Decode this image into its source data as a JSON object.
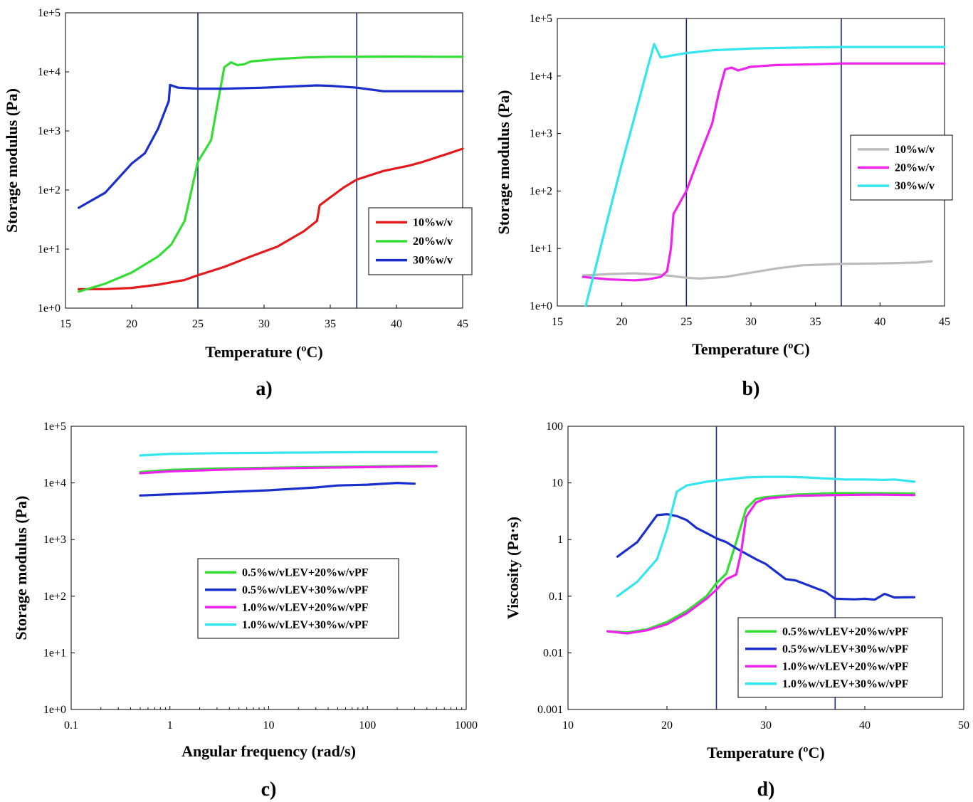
{
  "chart_data": [
    {
      "type": "line",
      "panel_label": "a)",
      "xlabel": "Temperature (ºC)",
      "ylabel": "Storage modulus (Pa)",
      "xlim": [
        15,
        45
      ],
      "ylim": [
        1,
        100000
      ],
      "yscale": "log",
      "xticks": [
        15,
        20,
        25,
        30,
        35,
        40,
        45
      ],
      "xtick_labels": [
        "15",
        "20",
        "25",
        "30",
        "35",
        "40",
        "45"
      ],
      "yticks": [
        1,
        10,
        100,
        1000,
        10000,
        100000
      ],
      "ytick_labels": [
        "1e+0",
        "1e+1",
        "1e+2",
        "1e+3",
        "1e+4",
        "1e+5"
      ],
      "vlines": [
        25,
        37
      ],
      "vline_color": "#1a237e",
      "legend_position": "right",
      "series": [
        {
          "name": "10%w/v",
          "color": "#e31a1c",
          "points": [
            [
              16,
              2.1
            ],
            [
              18,
              2.1
            ],
            [
              20,
              2.2
            ],
            [
              22,
              2.5
            ],
            [
              24,
              3.0
            ],
            [
              25,
              3.6
            ],
            [
              27,
              5.0
            ],
            [
              29,
              7.5
            ],
            [
              31,
              11
            ],
            [
              33,
              20
            ],
            [
              34,
              30
            ],
            [
              34.2,
              55
            ],
            [
              35,
              75
            ],
            [
              36,
              110
            ],
            [
              37,
              150
            ],
            [
              39,
              210
            ],
            [
              41,
              260
            ],
            [
              42,
              300
            ],
            [
              44,
              420
            ],
            [
              45,
              500
            ]
          ]
        },
        {
          "name": "20%w/v",
          "color": "#33dd33",
          "points": [
            [
              16,
              1.9
            ],
            [
              18,
              2.6
            ],
            [
              20,
              4.0
            ],
            [
              22,
              7.5
            ],
            [
              23,
              12
            ],
            [
              24,
              30
            ],
            [
              25,
              300
            ],
            [
              26,
              700
            ],
            [
              26.5,
              3000
            ],
            [
              27,
              12000
            ],
            [
              27.5,
              14500
            ],
            [
              28,
              13000
            ],
            [
              28.5,
              13500
            ],
            [
              29,
              15000
            ],
            [
              31,
              16500
            ],
            [
              33,
              17500
            ],
            [
              35,
              18000
            ],
            [
              37,
              18000
            ],
            [
              40,
              18200
            ],
            [
              43,
              18000
            ],
            [
              45,
              18000
            ]
          ]
        },
        {
          "name": "30%w/v",
          "color": "#1a2ecc",
          "points": [
            [
              16,
              50
            ],
            [
              18,
              90
            ],
            [
              20,
              280
            ],
            [
              21,
              420
            ],
            [
              22,
              1100
            ],
            [
              22.8,
              3200
            ],
            [
              22.9,
              6000
            ],
            [
              23.5,
              5400
            ],
            [
              25,
              5200
            ],
            [
              27,
              5200
            ],
            [
              30,
              5400
            ],
            [
              34,
              5900
            ],
            [
              35,
              5800
            ],
            [
              37,
              5400
            ],
            [
              39,
              4700
            ],
            [
              42,
              4700
            ],
            [
              45,
              4700
            ]
          ]
        }
      ]
    },
    {
      "type": "line",
      "panel_label": "b)",
      "xlabel": "Temperature (ºC)",
      "ylabel": "Storage modulus (Pa)",
      "xlim": [
        15,
        45
      ],
      "ylim": [
        1,
        100000
      ],
      "yscale": "log",
      "xticks": [
        15,
        20,
        25,
        30,
        35,
        40,
        45
      ],
      "xtick_labels": [
        "15",
        "20",
        "25",
        "30",
        "35",
        "40",
        "45"
      ],
      "yticks": [
        1,
        10,
        100,
        1000,
        10000,
        100000
      ],
      "ytick_labels": [
        "1e+0",
        "1e+1",
        "1e+2",
        "1e+3",
        "1e+4",
        "1e+5"
      ],
      "vlines": [
        25,
        37
      ],
      "vline_color": "#1a237e",
      "legend_position": "right",
      "series": [
        {
          "name": "10%w/v",
          "color": "#bbbbbb",
          "points": [
            [
              17,
              3.4
            ],
            [
              19,
              3.6
            ],
            [
              21,
              3.7
            ],
            [
              23,
              3.5
            ],
            [
              25,
              3.1
            ],
            [
              26,
              3.0
            ],
            [
              28,
              3.2
            ],
            [
              30,
              3.8
            ],
            [
              32,
              4.5
            ],
            [
              34,
              5.1
            ],
            [
              37,
              5.4
            ],
            [
              40,
              5.5
            ],
            [
              43,
              5.7
            ],
            [
              44,
              6.0
            ]
          ]
        },
        {
          "name": "20%w/v",
          "color": "#ee22ee",
          "points": [
            [
              17,
              3.2
            ],
            [
              19,
              2.9
            ],
            [
              21,
              2.8
            ],
            [
              22,
              2.9
            ],
            [
              23,
              3.2
            ],
            [
              23.5,
              4
            ],
            [
              23.8,
              10
            ],
            [
              24,
              40
            ],
            [
              25,
              100
            ],
            [
              26,
              400
            ],
            [
              27,
              1500
            ],
            [
              27.5,
              5000
            ],
            [
              28,
              13000
            ],
            [
              28.5,
              14000
            ],
            [
              29,
              12500
            ],
            [
              30,
              14500
            ],
            [
              32,
              15500
            ],
            [
              35,
              16000
            ],
            [
              37,
              16500
            ],
            [
              40,
              16500
            ],
            [
              45,
              16500
            ]
          ]
        },
        {
          "name": "30%w/v",
          "color": "#33e6ee",
          "points": [
            [
              17.2,
              1.0
            ],
            [
              18,
              5
            ],
            [
              19,
              40
            ],
            [
              20,
              300
            ],
            [
              21,
              2000
            ],
            [
              22,
              14000
            ],
            [
              22.5,
              36000
            ],
            [
              23,
              21000
            ],
            [
              24,
              23000
            ],
            [
              25,
              25000
            ],
            [
              27,
              28000
            ],
            [
              30,
              30000
            ],
            [
              33,
              31000
            ],
            [
              37,
              32000
            ],
            [
              40,
              32000
            ],
            [
              45,
              32000
            ]
          ]
        }
      ]
    },
    {
      "type": "line",
      "panel_label": "c)",
      "xlabel": "Angular frequency (rad/s)",
      "ylabel": "Storage modulus (Pa)",
      "xlim": [
        0.1,
        1000
      ],
      "xscale": "log",
      "ylim": [
        1,
        100000
      ],
      "yscale": "log",
      "xticks": [
        0.1,
        1,
        10,
        100,
        1000
      ],
      "xtick_labels": [
        "0.1",
        "1",
        "10",
        "100",
        "1000"
      ],
      "yticks": [
        1,
        10,
        100,
        1000,
        10000,
        100000
      ],
      "ytick_labels": [
        "1e+0",
        "1e+1",
        "1e+2",
        "1e+3",
        "1e+4",
        "1e+5"
      ],
      "vlines": [],
      "legend_position": "center",
      "series": [
        {
          "name": "0.5%w/vLEV+20%w/vPF",
          "color": "#33dd33",
          "points": [
            [
              0.5,
              15500
            ],
            [
              1,
              17000
            ],
            [
              3,
              18000
            ],
            [
              10,
              18500
            ],
            [
              30,
              19000
            ],
            [
              100,
              19500
            ],
            [
              300,
              20000
            ],
            [
              500,
              20000
            ]
          ]
        },
        {
          "name": "0.5%w/vLEV+30%w/vPF",
          "color": "#1a2ecc",
          "points": [
            [
              0.5,
              6000
            ],
            [
              1,
              6300
            ],
            [
              3,
              6800
            ],
            [
              10,
              7400
            ],
            [
              30,
              8300
            ],
            [
              50,
              9000
            ],
            [
              100,
              9300
            ],
            [
              200,
              10000
            ],
            [
              300,
              9700
            ]
          ]
        },
        {
          "name": "1.0%w/vLEV+20%w/vPF",
          "color": "#ee22ee",
          "points": [
            [
              0.5,
              14800
            ],
            [
              1,
              16000
            ],
            [
              3,
              17000
            ],
            [
              10,
              18000
            ],
            [
              30,
              18500
            ],
            [
              100,
              19000
            ],
            [
              300,
              19500
            ],
            [
              500,
              19800
            ]
          ]
        },
        {
          "name": "1.0%w/vLEV+30%w/vPF",
          "color": "#33e6ee",
          "points": [
            [
              0.5,
              30500
            ],
            [
              1,
              32500
            ],
            [
              3,
              33500
            ],
            [
              10,
              34000
            ],
            [
              30,
              34500
            ],
            [
              100,
              35000
            ],
            [
              300,
              35000
            ],
            [
              500,
              35000
            ]
          ]
        }
      ]
    },
    {
      "type": "line",
      "panel_label": "d)",
      "xlabel": "Temperature (ºC)",
      "ylabel": "Viscosity (Pa·s)",
      "xlim": [
        10,
        50
      ],
      "ylim": [
        0.001,
        100
      ],
      "yscale": "log",
      "xticks": [
        10,
        20,
        30,
        40,
        50
      ],
      "xtick_labels": [
        "10",
        "20",
        "30",
        "40",
        "50"
      ],
      "yticks": [
        0.001,
        0.01,
        0.1,
        1,
        10,
        100
      ],
      "ytick_labels": [
        "0.001",
        "0.01",
        "0.1",
        "1",
        "10",
        "100"
      ],
      "vlines": [
        25,
        37
      ],
      "vline_color": "#1a237e",
      "legend_position": "bottom-right",
      "series": [
        {
          "name": "0.5%w/vLEV+20%w/vPF",
          "color": "#33dd33",
          "points": [
            [
              14,
              0.024
            ],
            [
              16,
              0.023
            ],
            [
              18,
              0.026
            ],
            [
              20,
              0.035
            ],
            [
              22,
              0.055
            ],
            [
              24,
              0.1
            ],
            [
              25,
              0.17
            ],
            [
              26,
              0.25
            ],
            [
              27,
              0.9
            ],
            [
              28,
              3.5
            ],
            [
              29,
              5.2
            ],
            [
              30,
              5.6
            ],
            [
              33,
              6.2
            ],
            [
              37,
              6.6
            ],
            [
              41,
              6.6
            ],
            [
              45,
              6.5
            ]
          ]
        },
        {
          "name": "0.5%w/vLEV+30%w/vPF",
          "color": "#1a2ecc",
          "points": [
            [
              15,
              0.5
            ],
            [
              17,
              0.9
            ],
            [
              19,
              2.7
            ],
            [
              20,
              2.8
            ],
            [
              21,
              2.6
            ],
            [
              22,
              2.2
            ],
            [
              23,
              1.6
            ],
            [
              24,
              1.3
            ],
            [
              25,
              1.05
            ],
            [
              26,
              0.9
            ],
            [
              27,
              0.7
            ],
            [
              29,
              0.45
            ],
            [
              30,
              0.37
            ],
            [
              32,
              0.2
            ],
            [
              33,
              0.19
            ],
            [
              35,
              0.14
            ],
            [
              36,
              0.12
            ],
            [
              37,
              0.09
            ],
            [
              39,
              0.088
            ],
            [
              40,
              0.09
            ],
            [
              41,
              0.087
            ],
            [
              42,
              0.11
            ],
            [
              43,
              0.095
            ],
            [
              45,
              0.096
            ]
          ]
        },
        {
          "name": "1.0%w/vLEV+20%w/vPF",
          "color": "#ee22ee",
          "points": [
            [
              14,
              0.024
            ],
            [
              16,
              0.022
            ],
            [
              18,
              0.025
            ],
            [
              20,
              0.032
            ],
            [
              22,
              0.05
            ],
            [
              24,
              0.09
            ],
            [
              25,
              0.13
            ],
            [
              26,
              0.2
            ],
            [
              27,
              0.24
            ],
            [
              27.5,
              0.6
            ],
            [
              28,
              2.5
            ],
            [
              29,
              4.5
            ],
            [
              30,
              5.3
            ],
            [
              33,
              5.9
            ],
            [
              37,
              6.1
            ],
            [
              41,
              6.2
            ],
            [
              45,
              6.1
            ]
          ]
        },
        {
          "name": "1.0%w/vLEV+30%w/vPF",
          "color": "#33e6ee",
          "points": [
            [
              15,
              0.1
            ],
            [
              17,
              0.18
            ],
            [
              19,
              0.45
            ],
            [
              20,
              1.5
            ],
            [
              21,
              7
            ],
            [
              22,
              9
            ],
            [
              24,
              10.5
            ],
            [
              26,
              11.5
            ],
            [
              28,
              12.5
            ],
            [
              30,
              12.8
            ],
            [
              32,
              12.8
            ],
            [
              34,
              12.5
            ],
            [
              36,
              12.0
            ],
            [
              38,
              11.5
            ],
            [
              40,
              11.5
            ],
            [
              42,
              11.3
            ],
            [
              43,
              11.5
            ],
            [
              45,
              10.5
            ]
          ]
        }
      ]
    }
  ]
}
